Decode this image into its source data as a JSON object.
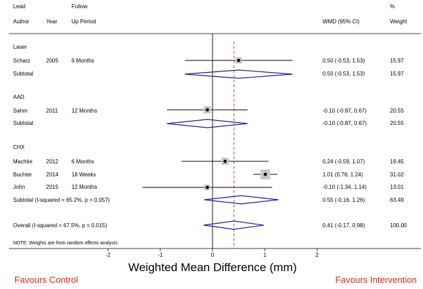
{
  "chart_data": {
    "type": "forest",
    "headers": {
      "author_line1": "Lead",
      "author_line2": "Author",
      "year": "Year",
      "followup_line1": "Follow",
      "followup_line2": "Up Period",
      "effect": "WMD (95% CI)",
      "weight_line1": "%",
      "weight_line2": "Weight"
    },
    "groups": [
      {
        "name": "Laser",
        "studies": [
          {
            "author": "Scharz",
            "year": "2005",
            "followup": "6 Months",
            "wmd": 0.5,
            "lo": -0.53,
            "hi": 1.53,
            "ci_text": "0.50 (-0.53, 1.53)",
            "weight": "15.97"
          }
        ],
        "subtotal": {
          "label": "Subtotal",
          "wmd": 0.5,
          "lo": -0.53,
          "hi": 1.53,
          "ci_text": "0.50 (-0.53, 1.53)",
          "weight": "15.97"
        }
      },
      {
        "name": "AAD",
        "studies": [
          {
            "author": "Sahm",
            "year": "2011",
            "followup": "12 Months",
            "wmd": -0.1,
            "lo": -0.87,
            "hi": 0.67,
            "ci_text": "-0.10 (-0.87, 0.67)",
            "weight": "20.55"
          }
        ],
        "subtotal": {
          "label": "Subtotal",
          "wmd": -0.1,
          "lo": -0.87,
          "hi": 0.67,
          "ci_text": "-0.10 (-0.87, 0.67)",
          "weight": "20.55"
        }
      },
      {
        "name": "CHX",
        "studies": [
          {
            "author": "Machtie",
            "year": "2012",
            "followup": "6 Months",
            "wmd": 0.24,
            "lo": -0.59,
            "hi": 1.07,
            "ci_text": "0.24 (-0.59, 1.07)",
            "weight": "19.45"
          },
          {
            "author": "Buchter",
            "year": "2014",
            "followup": "18 Weeks",
            "wmd": 1.01,
            "lo": 0.78,
            "hi": 1.24,
            "ci_text": "1.01 (0.78, 1.24)",
            "weight": "31.02"
          },
          {
            "author": "John",
            "year": "2015",
            "followup": "12 Months",
            "wmd": -0.1,
            "lo": -1.34,
            "hi": 1.14,
            "ci_text": "-0.10 (-1.34, 1.14)",
            "weight": "13.01"
          }
        ],
        "subtotal": {
          "label": "Subtotal  (I-squared = 65.2%, p = 0.057)",
          "wmd": 0.55,
          "lo": -0.16,
          "hi": 1.26,
          "ci_text": "0.55 (-0.16, 1.26)",
          "weight": "63.49"
        }
      }
    ],
    "overall": {
      "label": "Overall  (I-squared = 67.5%, p = 0.015)",
      "wmd": 0.41,
      "lo": -0.17,
      "hi": 0.98,
      "ci_text": "0.41 (-0.17, 0.98)",
      "weight": "100.00"
    },
    "note": "NOTE: Weights are from random effects analysis",
    "xlabel": "Weighted Mean Difference (mm)",
    "xticks": [
      -2,
      -1,
      0,
      1,
      2
    ],
    "xlim": [
      -2,
      2
    ],
    "null_line": 0,
    "pooled_line": 0.41,
    "favours_left": "Favours Control",
    "favours_right": "Favours Intervention",
    "colors": {
      "diamond": "#1f1f9a",
      "pooled_line": "#c0272d",
      "favours": "#e8231b",
      "box": "#c8c8c8"
    }
  }
}
